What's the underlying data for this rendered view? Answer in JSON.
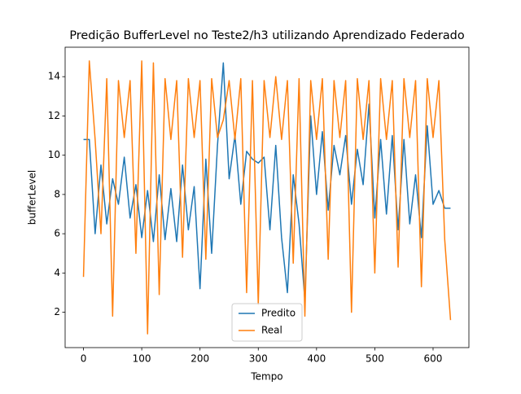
{
  "chart_data": {
    "type": "line",
    "title": "Predição BufferLevel no Teste2/h3 utilizando Aprendizado Federado",
    "xlabel": "Tempo",
    "ylabel": "bufferLevel",
    "x": [
      0,
      10,
      20,
      30,
      40,
      50,
      60,
      70,
      80,
      90,
      100,
      110,
      120,
      130,
      140,
      150,
      160,
      170,
      180,
      190,
      200,
      210,
      220,
      230,
      240,
      250,
      260,
      270,
      280,
      290,
      300,
      310,
      320,
      330,
      340,
      350,
      360,
      370,
      380,
      390,
      400,
      410,
      420,
      430,
      440,
      450,
      460,
      470,
      480,
      490,
      500,
      510,
      520,
      530,
      540,
      550,
      560,
      570,
      580,
      590,
      600,
      610,
      620,
      630
    ],
    "series": [
      {
        "name": "Predito",
        "color": "#1f77b4",
        "values": [
          10.8,
          10.8,
          6.0,
          9.5,
          6.5,
          8.8,
          7.5,
          9.9,
          6.8,
          8.5,
          5.8,
          8.2,
          5.6,
          9.0,
          5.7,
          8.3,
          5.6,
          9.5,
          6.2,
          8.4,
          3.2,
          9.8,
          5.0,
          10.5,
          14.7,
          8.8,
          11.0,
          7.5,
          10.2,
          9.8,
          9.6,
          9.9,
          6.2,
          10.5,
          5.8,
          3.0,
          9.0,
          6.5,
          2.6,
          12.0,
          8.0,
          11.2,
          7.2,
          10.5,
          9.0,
          11.0,
          7.5,
          10.3,
          8.5,
          12.6,
          6.8,
          10.8,
          7.0,
          11.0,
          6.2,
          10.8,
          6.5,
          9.0,
          5.8,
          11.5,
          7.5,
          8.2,
          7.3,
          7.3
        ]
      },
      {
        "name": "Real",
        "color": "#ff7f0e",
        "values": [
          3.8,
          14.8,
          10.8,
          6.0,
          13.9,
          1.8,
          13.8,
          10.9,
          13.8,
          5.0,
          14.8,
          0.9,
          14.7,
          2.9,
          13.9,
          10.8,
          13.8,
          4.8,
          13.9,
          10.9,
          13.8,
          4.7,
          13.9,
          10.9,
          11.8,
          13.8,
          10.8,
          13.9,
          3.0,
          13.8,
          2.4,
          13.8,
          10.9,
          14.0,
          10.8,
          13.8,
          4.5,
          13.9,
          1.8,
          13.8,
          10.8,
          13.9,
          4.7,
          13.8,
          10.9,
          13.8,
          2.0,
          13.9,
          10.8,
          13.8,
          4.0,
          13.9,
          10.8,
          13.8,
          4.3,
          13.9,
          10.9,
          13.8,
          3.3,
          13.9,
          10.9,
          13.8,
          5.7,
          1.6
        ]
      }
    ],
    "xlim": [
      -31.5,
      661.5
    ],
    "ylim": [
      0.2,
      15.5
    ],
    "xticks": [
      0,
      100,
      200,
      300,
      400,
      500,
      600
    ],
    "yticks": [
      2,
      4,
      6,
      8,
      10,
      12,
      14
    ],
    "legend": "lower center"
  }
}
